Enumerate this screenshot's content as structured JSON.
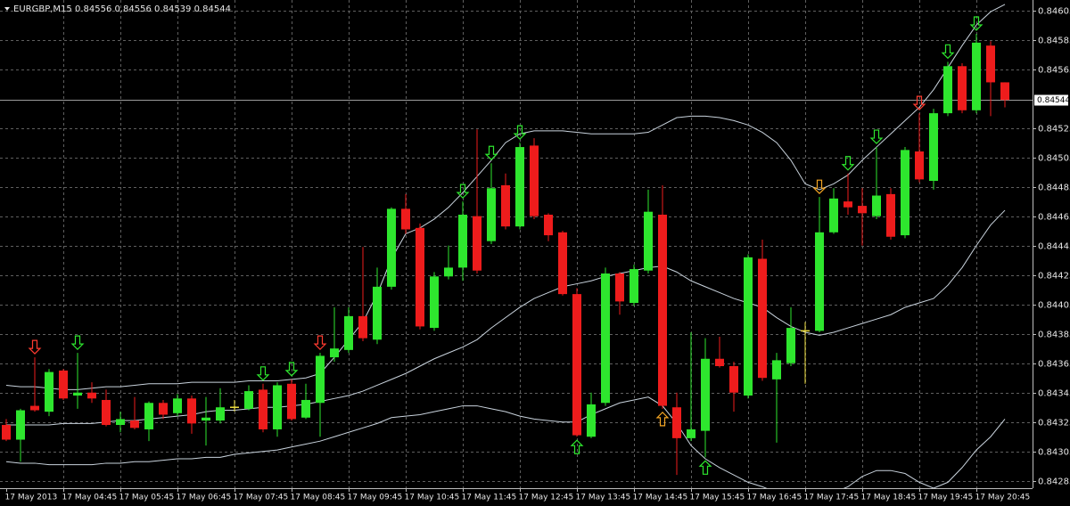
{
  "chart_data": {
    "type": "candlestick",
    "title": "EURGBP,M15",
    "categories": [
      "17 May 2013",
      null,
      null,
      null,
      "17 May 04:45",
      null,
      null,
      null,
      "17 May 05:45",
      null,
      null,
      null,
      "17 May 06:45",
      null,
      null,
      null,
      "17 May 07:45",
      null,
      null,
      null,
      "17 May 08:45",
      null,
      null,
      null,
      "17 May 09:45",
      null,
      null,
      null,
      "17 May 10:45",
      null,
      null,
      null,
      "17 May 11:45",
      null,
      null,
      null,
      "17 May 12:45",
      null,
      null,
      null,
      "17 May 13:45",
      null,
      null,
      null,
      "17 May 14:45",
      null,
      null,
      null,
      "17 May 15:45",
      null,
      null,
      null,
      "17 May 16:45",
      null,
      null,
      null,
      "17 May 17:45",
      null,
      null,
      null,
      "17 May 18:45",
      null,
      null,
      null,
      "17 May 19:45",
      null,
      null,
      null,
      "17 May 20:45",
      null,
      null
    ],
    "open": [
      0.84323,
      0.84313,
      0.84336,
      0.84332,
      0.8436,
      0.84343,
      0.84345,
      0.8434,
      0.84323,
      0.84326,
      0.8432,
      0.84338,
      0.84331,
      0.84341,
      0.84326,
      0.84326,
      0.84335,
      0.84334,
      0.84347,
      0.8432,
      0.84351,
      0.84328,
      0.84338,
      0.84369,
      0.84374,
      0.84397,
      0.84381,
      0.84417,
      0.8447,
      0.84457,
      0.84389,
      0.84424,
      0.8443,
      0.84465,
      0.84448,
      0.84486,
      0.84458,
      0.84513,
      0.84466,
      0.84454,
      0.84412,
      0.84315,
      0.84338,
      0.84426,
      0.84406,
      0.84428,
      0.84466,
      0.84335,
      0.84314,
      0.84319,
      0.84368,
      0.84363,
      0.84343,
      0.84436,
      0.84354,
      0.84365,
      0.84387,
      0.84387,
      0.84454,
      0.84475,
      0.84472,
      0.84465,
      0.8448,
      0.84452,
      0.84509,
      0.84489,
      0.84535,
      0.84567,
      0.84537,
      0.84581,
      0.84556
    ],
    "high": [
      0.84327,
      0.84334,
      0.84369,
      0.84361,
      0.84361,
      0.84372,
      0.84352,
      0.84347,
      0.84332,
      0.84342,
      0.84339,
      0.8434,
      0.84344,
      0.84343,
      0.84342,
      0.84348,
      0.8434,
      0.8435,
      0.84351,
      0.84352,
      0.84354,
      0.84351,
      0.84372,
      0.84403,
      0.84403,
      0.84444,
      0.8443,
      0.84471,
      0.8448,
      0.8446,
      0.84427,
      0.84445,
      0.84475,
      0.84524,
      0.84501,
      0.84494,
      0.84515,
      0.84518,
      0.84467,
      0.84455,
      0.84416,
      0.84345,
      0.8443,
      0.84427,
      0.84432,
      0.84483,
      0.84486,
      0.84345,
      0.84386,
      0.84382,
      0.84383,
      0.84366,
      0.84439,
      0.84449,
      0.84372,
      0.84403,
      0.84393,
      0.84478,
      0.84484,
      0.84494,
      0.84484,
      0.84512,
      0.84484,
      0.84512,
      0.84535,
      0.84538,
      0.8457,
      0.84569,
      0.84589,
      0.84584,
      0.84556
    ],
    "low": [
      0.84312,
      0.84298,
      0.84332,
      0.84329,
      0.8434,
      0.84334,
      0.84338,
      0.84322,
      0.84318,
      0.8432,
      0.84312,
      0.84327,
      0.84329,
      0.84317,
      0.84309,
      0.84324,
      0.84332,
      0.84333,
      0.84318,
      0.84315,
      0.84326,
      0.84327,
      0.84315,
      0.84366,
      0.84372,
      0.8438,
      0.84378,
      0.84415,
      0.84453,
      0.84388,
      0.84387,
      0.84422,
      0.84421,
      0.84426,
      0.84446,
      0.84456,
      0.84456,
      0.84463,
      0.84448,
      0.84411,
      0.84315,
      0.84314,
      0.84336,
      0.84398,
      0.84404,
      0.84426,
      0.84334,
      0.84289,
      0.84312,
      0.84301,
      0.84362,
      0.84332,
      0.84341,
      0.84353,
      0.84311,
      0.84363,
      0.84351,
      0.84386,
      0.84453,
      0.84466,
      0.84445,
      0.84463,
      0.84449,
      0.8445,
      0.84488,
      0.84483,
      0.84533,
      0.84535,
      0.84535,
      0.84533,
      0.84539
    ],
    "close": [
      0.84313,
      0.84333,
      0.84333,
      0.84359,
      0.84341,
      0.84345,
      0.84341,
      0.84323,
      0.84327,
      0.84321,
      0.84338,
      0.8433,
      0.84341,
      0.84324,
      0.84328,
      0.84335,
      0.84335,
      0.84346,
      0.8432,
      0.8435,
      0.84327,
      0.8434,
      0.8437,
      0.84375,
      0.84397,
      0.84382,
      0.84417,
      0.8447,
      0.84456,
      0.8439,
      0.84424,
      0.8443,
      0.84466,
      0.84428,
      0.84484,
      0.84458,
      0.84512,
      0.84465,
      0.84452,
      0.84412,
      0.84316,
      0.84337,
      0.84426,
      0.84407,
      0.84429,
      0.84468,
      0.84336,
      0.84314,
      0.8432,
      0.84368,
      0.84363,
      0.84345,
      0.84437,
      0.84355,
      0.84367,
      0.84389,
      0.84387,
      0.84454,
      0.84477,
      0.84471,
      0.84467,
      0.84479,
      0.84451,
      0.8451,
      0.8449,
      0.84535,
      0.84567,
      0.84537,
      0.84583,
      0.84556,
      0.84544
    ],
    "bands": [
      {
        "color": "#c9d3dd",
        "values": [
          0.8435,
          0.84349,
          0.84349,
          0.84348,
          0.84347,
          0.84347,
          0.84348,
          0.84349,
          0.84349,
          0.8435,
          0.84351,
          0.84351,
          0.84351,
          0.84352,
          0.84352,
          0.84352,
          0.84352,
          0.84353,
          0.84353,
          0.84353,
          0.84354,
          0.84355,
          0.84358,
          0.84369,
          0.84381,
          0.84393,
          0.84412,
          0.84436,
          0.84453,
          0.84457,
          0.84463,
          0.84471,
          0.84481,
          0.84492,
          0.84503,
          0.84515,
          0.84521,
          0.84523,
          0.84523,
          0.84523,
          0.84522,
          0.84521,
          0.84521,
          0.84521,
          0.84521,
          0.84522,
          0.84527,
          0.84532,
          0.84533,
          0.84533,
          0.84532,
          0.8453,
          0.84527,
          0.84522,
          0.84515,
          0.84503,
          0.84487,
          0.84483,
          0.84487,
          0.84493,
          0.84503,
          0.84512,
          0.84521,
          0.8453,
          0.84539,
          0.84551,
          0.84566,
          0.84581,
          0.84595,
          0.84604,
          0.84609
        ]
      },
      {
        "color": "#c9d3dd",
        "values": [
          0.84323,
          0.84323,
          0.84323,
          0.84323,
          0.84324,
          0.84324,
          0.84324,
          0.84325,
          0.84326,
          0.84326,
          0.84327,
          0.84328,
          0.84329,
          0.8433,
          0.84332,
          0.84333,
          0.84333,
          0.84334,
          0.84335,
          0.84335,
          0.84336,
          0.84337,
          0.84339,
          0.84341,
          0.84343,
          0.84346,
          0.8435,
          0.84354,
          0.84358,
          0.84363,
          0.84368,
          0.84372,
          0.84376,
          0.84381,
          0.84389,
          0.84396,
          0.84403,
          0.84409,
          0.84413,
          0.84417,
          0.84419,
          0.84421,
          0.84424,
          0.84426,
          0.84428,
          0.8443,
          0.84431,
          0.84427,
          0.84421,
          0.84417,
          0.84413,
          0.84409,
          0.84406,
          0.84403,
          0.84396,
          0.8439,
          0.84386,
          0.84384,
          0.84386,
          0.84389,
          0.84392,
          0.84395,
          0.84398,
          0.84403,
          0.84406,
          0.84409,
          0.84418,
          0.8443,
          0.84445,
          0.84459,
          0.84469
        ]
      },
      {
        "color": "#c9d3dd",
        "values": [
          0.84298,
          0.84297,
          0.84297,
          0.84296,
          0.84296,
          0.84296,
          0.84296,
          0.84297,
          0.84297,
          0.84298,
          0.84298,
          0.84299,
          0.843,
          0.843,
          0.84301,
          0.84301,
          0.84303,
          0.84304,
          0.84305,
          0.84306,
          0.84308,
          0.8431,
          0.84312,
          0.84315,
          0.84318,
          0.84321,
          0.84324,
          0.84328,
          0.84329,
          0.8433,
          0.84332,
          0.84334,
          0.84336,
          0.84336,
          0.84334,
          0.84332,
          0.84329,
          0.84327,
          0.84326,
          0.84325,
          0.84325,
          0.8433,
          0.84334,
          0.84338,
          0.8434,
          0.84342,
          0.84336,
          0.84324,
          0.84309,
          0.843,
          0.84294,
          0.84289,
          0.84284,
          0.84281,
          0.84277,
          0.84275,
          0.84275,
          0.84275,
          0.84277,
          0.84281,
          0.84288,
          0.84292,
          0.84292,
          0.8429,
          0.84284,
          0.8428,
          0.84284,
          0.84294,
          0.84306,
          0.84315,
          0.84327
        ]
      }
    ],
    "markers": [
      {
        "index": 2,
        "direction": "down",
        "color": "#ff3b30"
      },
      {
        "index": 5,
        "direction": "down",
        "color": "#2ee62e"
      },
      {
        "index": 18,
        "direction": "down",
        "color": "#2ee62e"
      },
      {
        "index": 20,
        "direction": "down",
        "color": "#2ee62e"
      },
      {
        "index": 22,
        "direction": "down",
        "color": "#ff3b30"
      },
      {
        "index": 32,
        "direction": "down",
        "color": "#2ee62e"
      },
      {
        "index": 34,
        "direction": "down",
        "color": "#2ee62e"
      },
      {
        "index": 36,
        "direction": "down",
        "color": "#2ee62e"
      },
      {
        "index": 40,
        "direction": "up",
        "color": "#2ee62e"
      },
      {
        "index": 46,
        "direction": "up",
        "color": "#f5a623"
      },
      {
        "index": 49,
        "direction": "up",
        "color": "#2ee62e"
      },
      {
        "index": 57,
        "direction": "down",
        "color": "#f5a623"
      },
      {
        "index": 59,
        "direction": "down",
        "color": "#2ee62e"
      },
      {
        "index": 61,
        "direction": "down",
        "color": "#2ee62e"
      },
      {
        "index": 64,
        "direction": "down",
        "color": "#ff3b30"
      },
      {
        "index": 66,
        "direction": "down",
        "color": "#2ee62e"
      },
      {
        "index": 68,
        "direction": "down",
        "color": "#2ee62e"
      }
    ],
    "up_color": "#2ee62e",
    "down_color": "#ee1c1c",
    "doji_color": "#f0e040",
    "ylim": [
      0.8428,
      0.84612
    ],
    "yticks": [
      0.84285,
      0.84305,
      0.84325,
      0.84345,
      0.84365,
      0.84385,
      0.84405,
      0.84425,
      0.84445,
      0.84465,
      0.84485,
      0.84505,
      0.84525,
      0.84565,
      0.84585,
      0.84605
    ],
    "grid": true
  }
}
